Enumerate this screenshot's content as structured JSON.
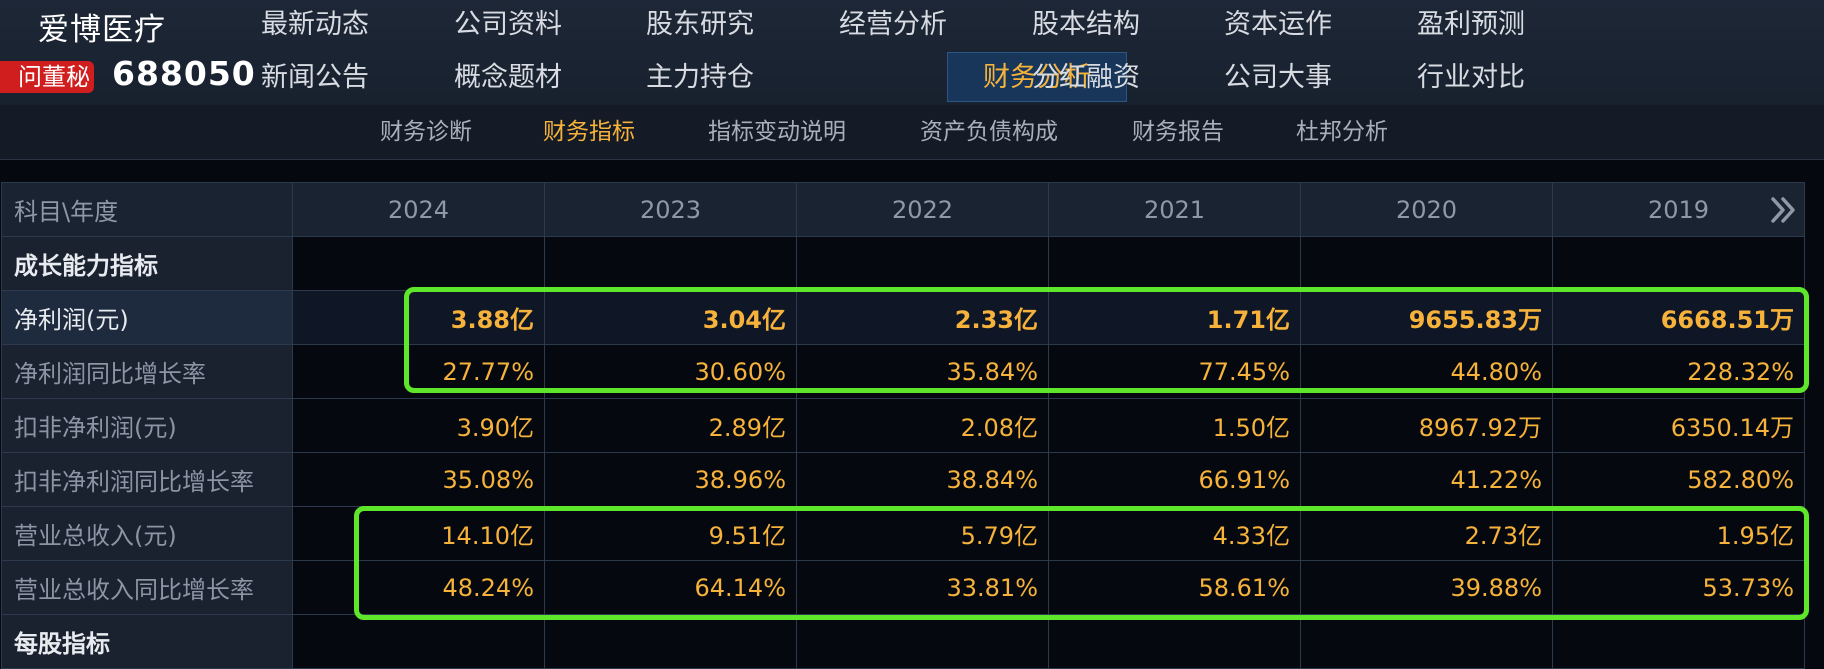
{
  "header": {
    "company_name": "爱博医疗",
    "ask_badge": "问董秘",
    "stock_code": "688050",
    "nav_row1": [
      "最新动态",
      "公司资料",
      "股东研究",
      "经营分析",
      "股本结构",
      "资本运作",
      "盈利预测"
    ],
    "nav_row2": [
      "新闻公告",
      "概念题材",
      "主力持仓",
      "财务分析",
      "分红融资",
      "公司大事",
      "行业对比"
    ],
    "active_nav": "财务分析"
  },
  "subnav": {
    "items": [
      "财务诊断",
      "财务指标",
      "指标变动说明",
      "资产负债构成",
      "财务报告",
      "杜邦分析"
    ],
    "active": "财务指标"
  },
  "table": {
    "corner_label": "科目\\年度",
    "years": [
      "2024",
      "2023",
      "2022",
      "2021",
      "2020",
      "2019"
    ],
    "rows": [
      {
        "label": "成长能力指标",
        "values": [
          "",
          "",
          "",
          "",
          "",
          ""
        ]
      },
      {
        "label": "净利润(元)",
        "values": [
          "3.88亿",
          "3.04亿",
          "2.33亿",
          "1.71亿",
          "9655.83万",
          "6668.51万"
        ]
      },
      {
        "label": "净利润同比增长率",
        "values": [
          "27.77%",
          "30.60%",
          "35.84%",
          "77.45%",
          "44.80%",
          "228.32%"
        ]
      },
      {
        "label": "扣非净利润(元)",
        "values": [
          "3.90亿",
          "2.89亿",
          "2.08亿",
          "1.50亿",
          "8967.92万",
          "6350.14万"
        ]
      },
      {
        "label": "扣非净利润同比增长率",
        "values": [
          "35.08%",
          "38.96%",
          "38.84%",
          "66.91%",
          "41.22%",
          "582.80%"
        ]
      },
      {
        "label": "营业总收入(元)",
        "values": [
          "14.10亿",
          "9.51亿",
          "5.79亿",
          "4.33亿",
          "2.73亿",
          "1.95亿"
        ]
      },
      {
        "label": "营业总收入同比增长率",
        "values": [
          "48.24%",
          "64.14%",
          "33.81%",
          "58.61%",
          "39.88%",
          "53.73%"
        ]
      },
      {
        "label": "每股指标",
        "values": [
          "",
          "",
          "",
          "",
          "",
          ""
        ]
      }
    ]
  },
  "colors": {
    "accent": "#f6b23a",
    "highlight_box": "#5ee62a",
    "badge": "#d01d1d"
  },
  "icons": {
    "more_columns": "double-chevron-right-icon"
  }
}
